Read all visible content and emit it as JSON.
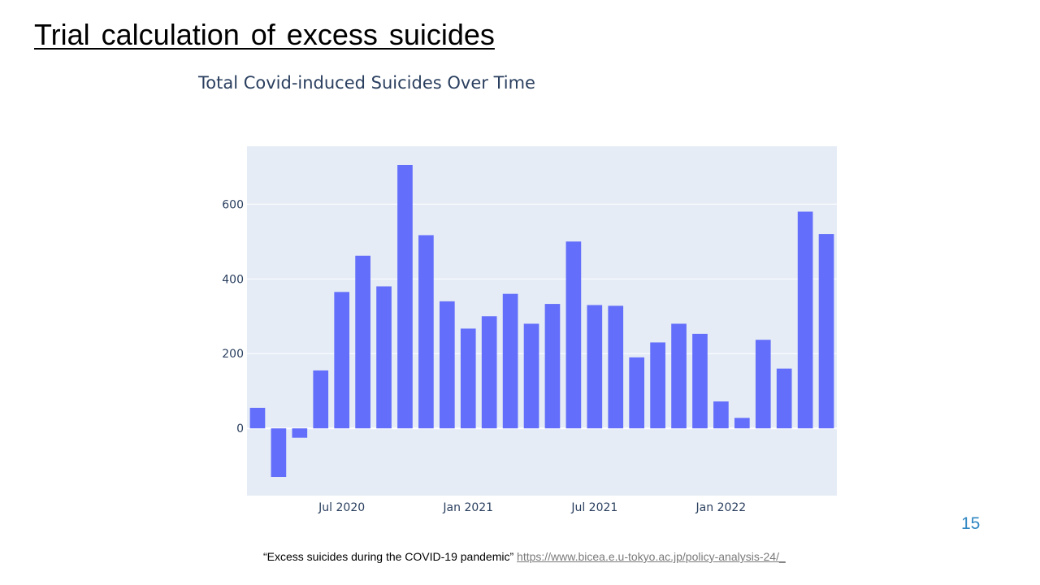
{
  "slide": {
    "title": "Trial calculation of excess suicides",
    "page_number": "15"
  },
  "source": {
    "citation": "“Excess suicides during the COVID-19 pandemic”",
    "url": "https://www.bicea.e.u-tokyo.ac.jp/policy-analysis-24/_"
  },
  "chart_data": {
    "type": "bar",
    "title": "Total Covid-induced Suicides Over Time",
    "xlabel": "",
    "ylabel": "",
    "x": [
      "2020-03",
      "2020-04",
      "2020-05",
      "2020-06",
      "2020-07",
      "2020-08",
      "2020-09",
      "2020-10",
      "2020-11",
      "2020-12",
      "2021-01",
      "2021-02",
      "2021-03",
      "2021-04",
      "2021-05",
      "2021-06",
      "2021-07",
      "2021-08",
      "2021-09",
      "2021-10",
      "2021-11",
      "2021-12",
      "2022-01",
      "2022-02",
      "2022-03",
      "2022-04",
      "2022-05",
      "2022-06"
    ],
    "values": [
      55,
      -130,
      -25,
      155,
      365,
      462,
      380,
      705,
      517,
      340,
      267,
      300,
      360,
      280,
      333,
      500,
      330,
      328,
      190,
      230,
      280,
      253,
      72,
      28,
      237,
      160,
      580,
      520
    ],
    "xticks": [
      {
        "x": "2020-07",
        "label": "Jul 2020"
      },
      {
        "x": "2021-01",
        "label": "Jan 2021"
      },
      {
        "x": "2021-07",
        "label": "Jul 2021"
      },
      {
        "x": "2022-01",
        "label": "Jan 2022"
      }
    ],
    "yticks": [
      0,
      200,
      400,
      600
    ],
    "ylim": [
      -180,
      755
    ],
    "grid": true,
    "colors": {
      "bar": "#636efa",
      "plot_bg": "#e5ecf6",
      "grid": "#ffffff",
      "tick_text": "#2a3f5f"
    }
  }
}
